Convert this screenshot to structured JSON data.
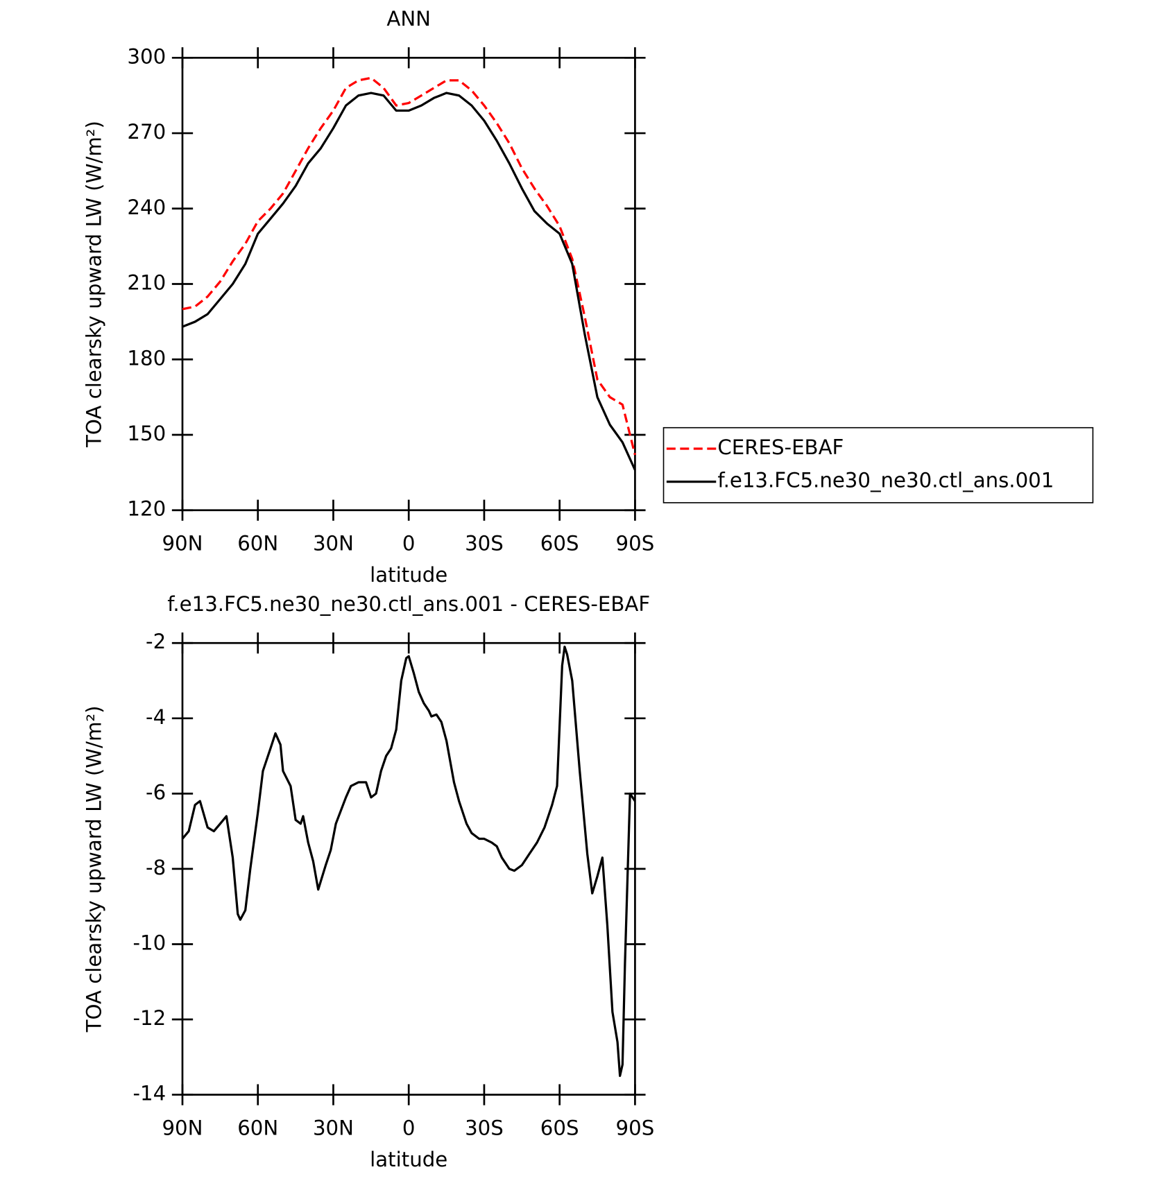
{
  "chart_data": [
    {
      "type": "line",
      "title": "ANN",
      "xlabel": "latitude",
      "ylabel": "TOA clearsky upward LW (W/m²)",
      "x": [
        90,
        85,
        80,
        75,
        70,
        65,
        60,
        55,
        50,
        45,
        40,
        35,
        30,
        25,
        20,
        15,
        10,
        5,
        0,
        -5,
        -10,
        -15,
        -20,
        -25,
        -30,
        -35,
        -40,
        -45,
        -50,
        -55,
        -60,
        -65,
        -70,
        -75,
        -80,
        -85,
        -90
      ],
      "series": [
        {
          "name": "CERES-EBAF",
          "color": "#ff0000",
          "linestyle": "dashed",
          "values": [
            200,
            201,
            205,
            211,
            219,
            226,
            235,
            240,
            246,
            255,
            264,
            272,
            279,
            288,
            291,
            292,
            288,
            281,
            282,
            285,
            288,
            291,
            291,
            287,
            281,
            274,
            266,
            256,
            248,
            241,
            233,
            220,
            197,
            172,
            165,
            162,
            142
          ]
        },
        {
          "name": "f.e13.FC5.ne30_ne30.ctl_ans.001",
          "color": "#000000",
          "linestyle": "solid",
          "values": [
            193,
            195,
            198,
            204,
            210,
            218,
            230,
            236,
            242,
            249,
            258,
            264,
            272,
            281,
            285,
            286,
            285,
            279,
            279,
            281,
            284,
            286,
            285,
            281,
            275,
            267,
            258,
            248,
            239,
            234,
            230,
            218,
            190,
            165,
            154,
            147,
            136
          ]
        }
      ],
      "xlim": [
        90,
        -90
      ],
      "ylim": [
        120,
        300
      ],
      "xticks": [
        {
          "value": 90,
          "label": "90N"
        },
        {
          "value": 60,
          "label": "60N"
        },
        {
          "value": 30,
          "label": "30N"
        },
        0,
        {
          "value": -30,
          "label": "30S"
        },
        {
          "value": -60,
          "label": "60S"
        },
        {
          "value": -90,
          "label": "90S"
        }
      ],
      "yticks": [
        120,
        150,
        180,
        210,
        240,
        270,
        300
      ],
      "legend": "right"
    },
    {
      "type": "line",
      "title": "f.e13.FC5.ne30_ne30.ctl_ans.001 - CERES-EBAF",
      "xlabel": "latitude",
      "ylabel": "TOA clearsky upward LW (W/m²)",
      "x": [
        90,
        87.5,
        85,
        83,
        80,
        77.5,
        75,
        72.5,
        70,
        68,
        67,
        65,
        63,
        60,
        58,
        55,
        53,
        51,
        50,
        47,
        45,
        43,
        42,
        40,
        38,
        36,
        33,
        31,
        29,
        25,
        23,
        20,
        17,
        15,
        13,
        11,
        9,
        7,
        5,
        3,
        1,
        0,
        -2,
        -4,
        -6,
        -8,
        -9,
        -11,
        -13,
        -15,
        -18,
        -20,
        -23,
        -25,
        -28,
        -30,
        -33,
        -35,
        -37,
        -40,
        -42,
        -45,
        -48,
        -51,
        -54,
        -57,
        -59,
        -61,
        -62,
        -63,
        -65,
        -68,
        -71,
        -73,
        -75,
        -77,
        -79,
        -81,
        -83,
        -84,
        -85,
        -86,
        -88,
        -90
      ],
      "series": [
        {
          "name": "f.e13.FC5.ne30_ne30.ctl_ans.001 - CERES-EBAF",
          "color": "#000000",
          "linestyle": "solid",
          "values": [
            -7.2,
            -7.0,
            -6.3,
            -6.2,
            -6.9,
            -7.0,
            -6.8,
            -6.6,
            -7.7,
            -9.2,
            -9.35,
            -9.1,
            -8.0,
            -6.5,
            -5.4,
            -4.8,
            -4.4,
            -4.7,
            -5.4,
            -5.8,
            -6.7,
            -6.8,
            -6.6,
            -7.3,
            -7.8,
            -8.55,
            -7.9,
            -7.5,
            -6.8,
            -6.1,
            -5.8,
            -5.7,
            -5.7,
            -6.1,
            -6.0,
            -5.4,
            -5.0,
            -4.8,
            -4.3,
            -3.0,
            -2.4,
            -2.35,
            -2.8,
            -3.3,
            -3.6,
            -3.8,
            -3.95,
            -3.9,
            -4.1,
            -4.6,
            -5.7,
            -6.2,
            -6.8,
            -7.05,
            -7.2,
            -7.2,
            -7.3,
            -7.4,
            -7.7,
            -8.0,
            -8.05,
            -7.9,
            -7.6,
            -7.3,
            -6.9,
            -6.3,
            -5.8,
            -2.6,
            -2.1,
            -2.3,
            -3.0,
            -5.4,
            -7.6,
            -8.65,
            -8.2,
            -7.7,
            -9.5,
            -11.8,
            -12.6,
            -13.5,
            -13.2,
            -10.5,
            -6.0,
            -6.2
          ]
        }
      ],
      "xlim": [
        90,
        -90
      ],
      "ylim": [
        -14,
        -2
      ],
      "xticks": [
        {
          "value": 90,
          "label": "90N"
        },
        {
          "value": 60,
          "label": "60N"
        },
        {
          "value": 30,
          "label": "30N"
        },
        0,
        {
          "value": -30,
          "label": "30S"
        },
        {
          "value": -60,
          "label": "60S"
        },
        {
          "value": -90,
          "label": "90S"
        }
      ],
      "yticks": [
        -14,
        -12,
        -10,
        -8,
        -6,
        -4,
        -2
      ]
    }
  ]
}
